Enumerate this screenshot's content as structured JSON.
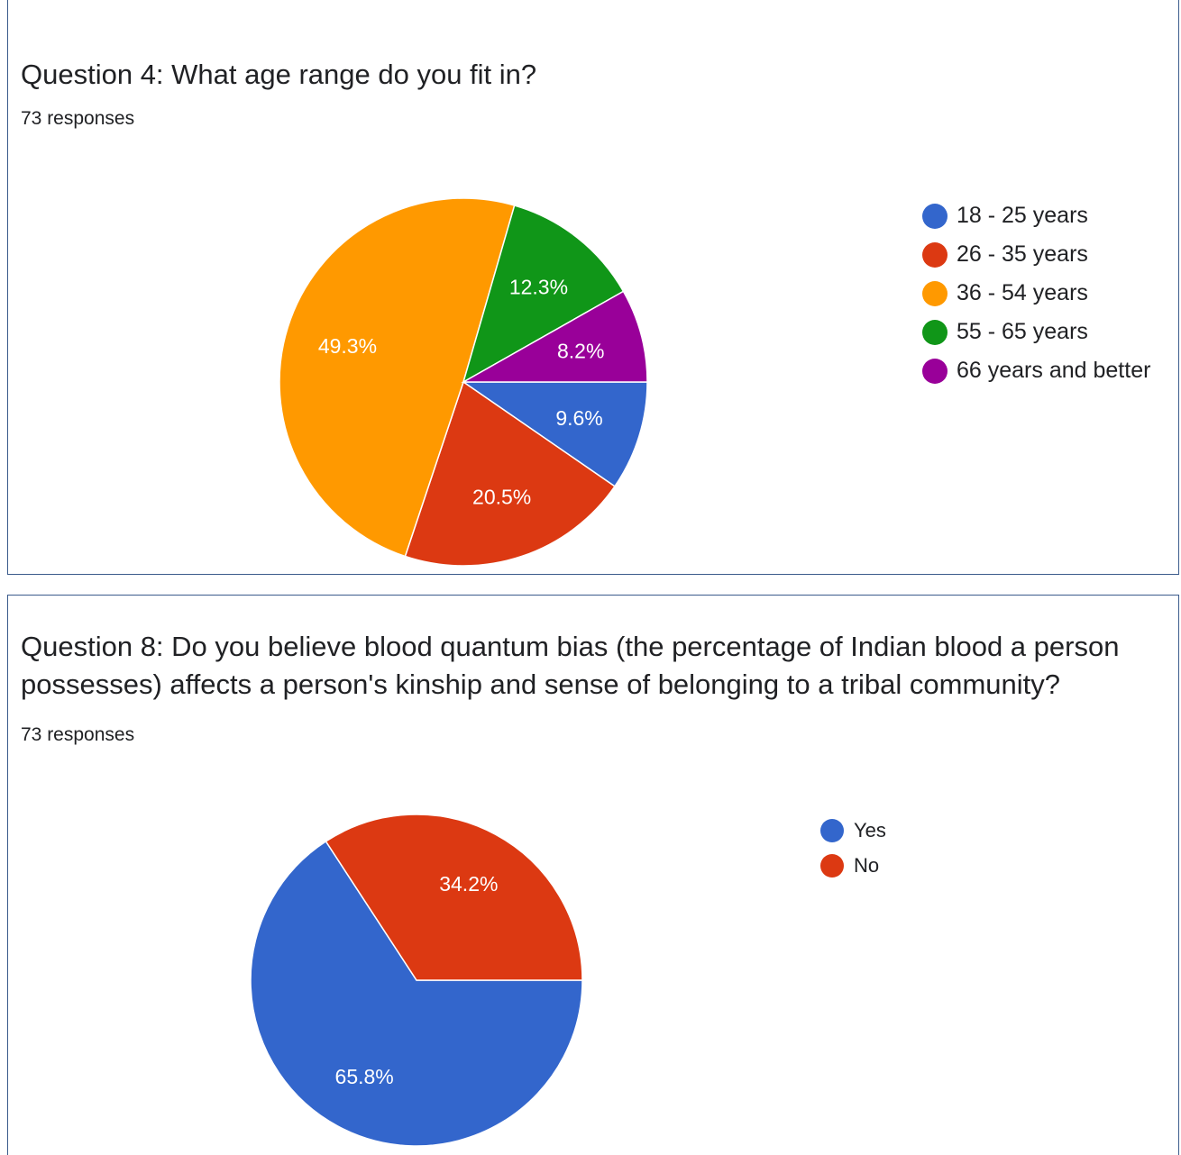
{
  "chart_data": [
    {
      "type": "pie",
      "title": "Question 4: What age range do you fit in?",
      "subtitle": "73 responses",
      "legend_position": "right",
      "slices": [
        {
          "label": "18 - 25 years",
          "value": 9.6,
          "value_label": "9.6%",
          "color": "#3366cc"
        },
        {
          "label": "26 - 35 years",
          "value": 20.5,
          "value_label": "20.5%",
          "color": "#dc3912"
        },
        {
          "label": "36 - 54 years",
          "value": 49.3,
          "value_label": "49.3%",
          "color": "#ff9900"
        },
        {
          "label": "55 - 65 years",
          "value": 12.3,
          "value_label": "12.3%",
          "color": "#109618"
        },
        {
          "label": "66 years and better",
          "value": 8.2,
          "value_label": "8.2%",
          "color": "#990099"
        }
      ]
    },
    {
      "type": "pie",
      "title": "Question 8: Do you believe blood quantum bias (the percentage of Indian blood a person possesses) affects a person's kinship and sense of belonging to a tribal community?",
      "subtitle": "73 responses",
      "legend_position": "top-right",
      "slices": [
        {
          "label": "Yes",
          "value": 65.8,
          "value_label": "65.8%",
          "color": "#3366cc"
        },
        {
          "label": "No",
          "value": 34.2,
          "value_label": "34.2%",
          "color": "#dc3912"
        }
      ]
    }
  ]
}
